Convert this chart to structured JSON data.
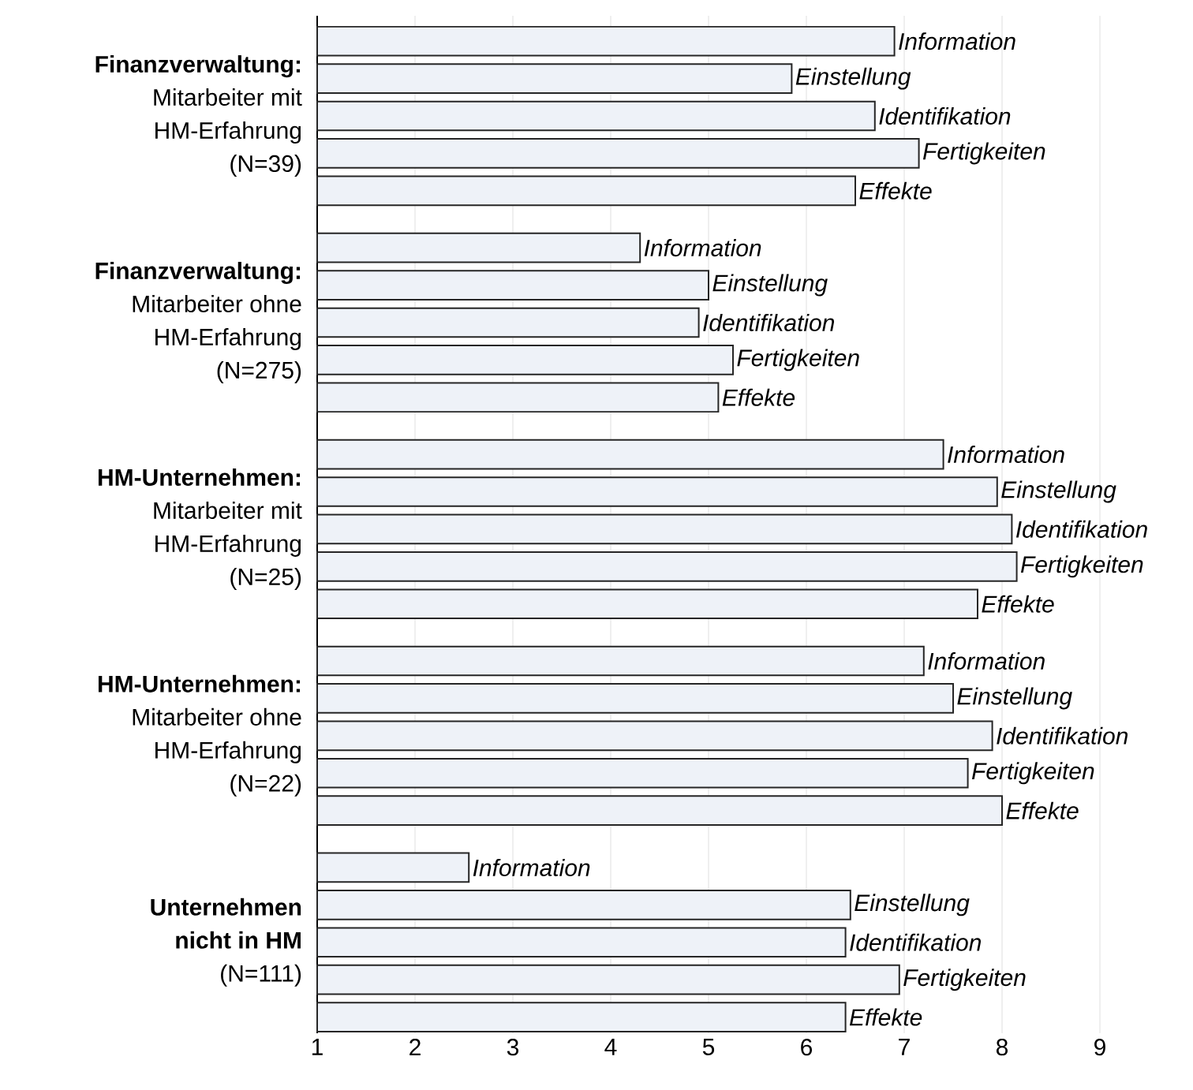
{
  "chart_data": {
    "type": "bar",
    "orientation": "horizontal",
    "categories": [
      "**Finanzverwaltung:** Mitarbeiter mit HM-Erfahrung (N=39)",
      "**Finanzverwaltung:** Mitarbeiter ohne HM-Erfahrung (N=275)",
      "**HM-Unternehmen:** Mitarbeiter mit HM-Erfahrung (N=25)",
      "**HM-Unternehmen:** Mitarbeiter ohne HM-Erfahrung (N=22)",
      "**Unternehmen nicht in HM** (N=111)"
    ],
    "series": [
      {
        "name": "Information",
        "color": "#eef2f8",
        "values": [
          6.9,
          4.3,
          7.4,
          7.2,
          2.55
        ]
      },
      {
        "name": "Einstellung",
        "color": "#eef2f8",
        "values": [
          5.85,
          5.0,
          7.95,
          7.5,
          6.45
        ]
      },
      {
        "name": "Identifikation",
        "color": "#eef2f8",
        "values": [
          6.7,
          4.9,
          8.1,
          7.9,
          6.4
        ]
      },
      {
        "name": "Fertigkeiten",
        "color": "#eef2f8",
        "values": [
          7.15,
          5.25,
          8.15,
          7.65,
          6.95
        ]
      },
      {
        "name": "Effekte",
        "color": "#eef2f8",
        "values": [
          6.5,
          5.1,
          7.75,
          8.0,
          6.4
        ]
      }
    ],
    "xlim": [
      1,
      9
    ],
    "xticks": [
      1,
      2,
      3,
      4,
      5,
      6,
      7,
      8,
      9
    ],
    "grid": "x"
  }
}
